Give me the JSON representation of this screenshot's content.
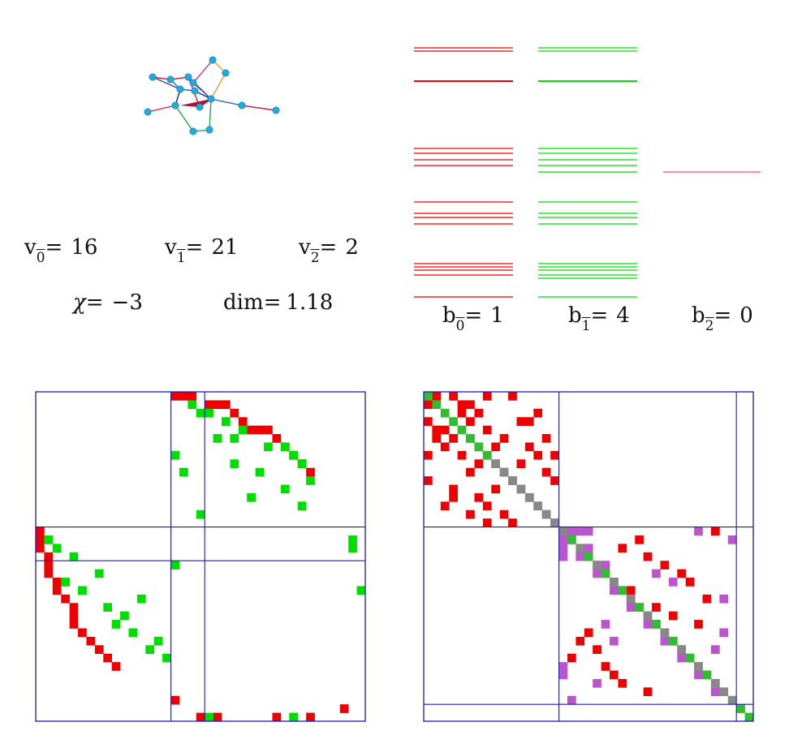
{
  "stats": {
    "v0": {
      "sym": "v",
      "sub": "0",
      "eq": "=",
      "value": "16"
    },
    "v1": {
      "sym": "v",
      "sub": "1",
      "eq": "=",
      "value": "21"
    },
    "v2": {
      "sym": "v",
      "sub": "2",
      "eq": "=",
      "value": "2"
    },
    "chi": {
      "label": "χ=",
      "value": "−3"
    },
    "dim": {
      "label": "dim=",
      "value": "1.18"
    },
    "b0": {
      "sym": "b",
      "sub": "0",
      "eq": "=",
      "value": "1"
    },
    "b1": {
      "sym": "b",
      "sub": "1",
      "eq": "=",
      "value": "4"
    },
    "b2": {
      "sym": "b",
      "sub": "2",
      "eq": "=",
      "value": "0"
    }
  },
  "colors": {
    "red": "#ee0000",
    "green": "#00dd00",
    "magenta": "#bb55cc",
    "gray": "#888888",
    "blue": "#1a1ab8",
    "node": "#22aadd"
  },
  "spectrum": {
    "col0": [
      59,
      63,
      100,
      183,
      189,
      197,
      204,
      249,
      263,
      268,
      276,
      325,
      329,
      333,
      339,
      366
    ],
    "col1": [
      59,
      63,
      100,
      183,
      189,
      197,
      204,
      212,
      249,
      263,
      268,
      276,
      325,
      329,
      333,
      339,
      343,
      366
    ],
    "col2": [
      212
    ]
  },
  "matrixA": {
    "n": 39,
    "blocks": [
      16,
      20
    ],
    "red": [
      [
        0,
        16
      ],
      [
        0,
        17
      ],
      [
        0,
        18
      ],
      [
        1,
        20
      ],
      [
        1,
        21
      ],
      [
        1,
        22
      ],
      [
        2,
        23
      ],
      [
        3,
        24
      ],
      [
        4,
        25
      ],
      [
        4,
        26
      ],
      [
        4,
        27
      ],
      [
        5,
        28
      ],
      [
        6,
        29
      ],
      [
        7,
        30
      ],
      [
        8,
        31
      ],
      [
        9,
        32
      ],
      [
        16,
        0
      ],
      [
        17,
        0
      ],
      [
        18,
        0
      ],
      [
        19,
        1
      ],
      [
        20,
        1
      ],
      [
        21,
        1
      ],
      [
        22,
        2
      ],
      [
        23,
        2
      ],
      [
        24,
        3
      ],
      [
        25,
        4
      ],
      [
        26,
        4
      ],
      [
        27,
        4
      ],
      [
        28,
        5
      ],
      [
        29,
        6
      ],
      [
        30,
        7
      ],
      [
        31,
        8
      ],
      [
        32,
        9
      ],
      [
        36,
        16
      ],
      [
        37,
        36
      ],
      [
        38,
        19
      ],
      [
        38,
        21
      ],
      [
        38,
        28
      ],
      [
        38,
        32
      ]
    ],
    "green": [
      [
        1,
        18
      ],
      [
        2,
        19
      ],
      [
        2,
        20
      ],
      [
        3,
        22
      ],
      [
        4,
        24
      ],
      [
        5,
        21
      ],
      [
        5,
        23
      ],
      [
        6,
        27
      ],
      [
        6,
        29
      ],
      [
        7,
        16
      ],
      [
        7,
        30
      ],
      [
        8,
        23
      ],
      [
        8,
        31
      ],
      [
        9,
        17
      ],
      [
        9,
        26
      ],
      [
        10,
        32
      ],
      [
        11,
        29
      ],
      [
        12,
        25
      ],
      [
        13,
        31
      ],
      [
        14,
        19
      ],
      [
        17,
        1
      ],
      [
        17,
        37
      ],
      [
        18,
        2
      ],
      [
        18,
        37
      ],
      [
        19,
        4
      ],
      [
        20,
        16
      ],
      [
        21,
        7
      ],
      [
        22,
        3
      ],
      [
        23,
        5
      ],
      [
        23,
        38
      ],
      [
        24,
        12
      ],
      [
        25,
        8
      ],
      [
        26,
        10
      ],
      [
        27,
        9
      ],
      [
        28,
        11
      ],
      [
        29,
        14
      ],
      [
        30,
        13
      ],
      [
        31,
        15
      ],
      [
        38,
        20
      ],
      [
        38,
        30
      ]
    ]
  },
  "matrixB": {
    "n": 39,
    "blocks": [
      16,
      37
    ],
    "gray": [
      [
        5,
        5
      ],
      [
        6,
        6
      ],
      [
        7,
        7
      ],
      [
        8,
        8
      ],
      [
        9,
        9
      ],
      [
        10,
        10
      ],
      [
        11,
        11
      ],
      [
        12,
        12
      ],
      [
        13,
        13
      ],
      [
        14,
        14
      ],
      [
        15,
        15
      ],
      [
        16,
        16
      ],
      [
        17,
        17
      ],
      [
        18,
        18
      ],
      [
        19,
        19
      ],
      [
        20,
        20
      ],
      [
        21,
        21
      ],
      [
        22,
        22
      ],
      [
        23,
        23
      ],
      [
        24,
        24
      ],
      [
        25,
        25
      ],
      [
        26,
        26
      ],
      [
        27,
        27
      ],
      [
        28,
        28
      ],
      [
        29,
        29
      ],
      [
        30,
        30
      ],
      [
        31,
        31
      ],
      [
        32,
        32
      ],
      [
        33,
        33
      ],
      [
        34,
        34
      ],
      [
        35,
        35
      ],
      [
        36,
        36
      ]
    ],
    "green": [
      [
        0,
        0
      ],
      [
        1,
        1
      ],
      [
        2,
        2
      ],
      [
        3,
        3
      ],
      [
        4,
        4
      ],
      [
        5,
        5
      ],
      [
        6,
        6
      ],
      [
        7,
        7
      ],
      [
        17,
        17
      ],
      [
        19,
        19
      ],
      [
        21,
        21
      ],
      [
        23,
        23
      ],
      [
        25,
        25
      ],
      [
        27,
        27
      ],
      [
        29,
        29
      ],
      [
        31,
        31
      ],
      [
        33,
        33
      ],
      [
        37,
        37
      ],
      [
        38,
        38
      ]
    ],
    "magenta": [
      [
        8,
        8
      ],
      [
        9,
        9
      ],
      [
        10,
        10
      ],
      [
        11,
        11
      ],
      [
        12,
        12
      ],
      [
        13,
        13
      ],
      [
        14,
        14
      ],
      [
        15,
        15
      ],
      [
        16,
        16
      ],
      [
        16,
        17
      ],
      [
        16,
        18
      ],
      [
        16,
        19
      ],
      [
        17,
        16
      ],
      [
        18,
        16
      ],
      [
        18,
        19
      ],
      [
        19,
        16
      ],
      [
        19,
        18
      ],
      [
        20,
        20
      ],
      [
        20,
        21
      ],
      [
        21,
        20
      ],
      [
        22,
        22
      ],
      [
        23,
        22
      ],
      [
        24,
        24
      ],
      [
        25,
        24
      ],
      [
        26,
        26
      ],
      [
        27,
        26
      ],
      [
        28,
        28
      ],
      [
        29,
        28
      ],
      [
        30,
        30
      ],
      [
        31,
        30
      ],
      [
        32,
        32
      ],
      [
        33,
        32
      ],
      [
        34,
        34
      ],
      [
        35,
        34
      ],
      [
        16,
        32
      ],
      [
        17,
        36
      ],
      [
        21,
        27
      ],
      [
        22,
        29
      ],
      [
        27,
        21
      ],
      [
        29,
        22
      ],
      [
        32,
        16
      ],
      [
        36,
        17
      ],
      [
        28,
        35
      ],
      [
        34,
        20
      ],
      [
        33,
        16
      ],
      [
        24,
        35
      ],
      [
        30,
        34
      ]
    ],
    "red": [
      [
        0,
        1
      ],
      [
        1,
        0
      ],
      [
        0,
        3
      ],
      [
        3,
        0
      ],
      [
        1,
        4
      ],
      [
        4,
        1
      ],
      [
        2,
        6
      ],
      [
        6,
        2
      ],
      [
        0,
        7
      ],
      [
        7,
        0
      ],
      [
        0,
        10
      ],
      [
        10,
        0
      ],
      [
        1,
        5
      ],
      [
        5,
        1
      ],
      [
        2,
        4
      ],
      [
        4,
        2
      ],
      [
        3,
        5
      ],
      [
        5,
        3
      ],
      [
        4,
        7
      ],
      [
        7,
        4
      ],
      [
        3,
        12
      ],
      [
        12,
        3
      ],
      [
        5,
        9
      ],
      [
        9,
        5
      ],
      [
        6,
        8
      ],
      [
        8,
        6
      ],
      [
        7,
        13
      ],
      [
        13,
        7
      ],
      [
        8,
        11
      ],
      [
        11,
        8
      ],
      [
        9,
        14
      ],
      [
        14,
        9
      ],
      [
        10,
        15
      ],
      [
        15,
        10
      ],
      [
        11,
        3
      ],
      [
        3,
        11
      ],
      [
        12,
        6
      ],
      [
        6,
        12
      ],
      [
        13,
        2
      ],
      [
        2,
        13
      ],
      [
        14,
        5
      ],
      [
        5,
        14
      ],
      [
        15,
        7
      ],
      [
        7,
        15
      ],
      [
        16,
        34
      ],
      [
        17,
        25
      ],
      [
        18,
        23
      ],
      [
        19,
        26
      ],
      [
        20,
        28
      ],
      [
        21,
        30
      ],
      [
        22,
        31
      ],
      [
        23,
        24
      ],
      [
        24,
        33
      ],
      [
        25,
        27
      ],
      [
        26,
        29
      ],
      [
        27,
        32
      ],
      [
        28,
        19
      ],
      [
        29,
        18
      ],
      [
        30,
        20
      ],
      [
        31,
        17
      ],
      [
        32,
        21
      ],
      [
        33,
        22
      ],
      [
        34,
        23
      ],
      [
        35,
        26
      ]
    ]
  }
}
